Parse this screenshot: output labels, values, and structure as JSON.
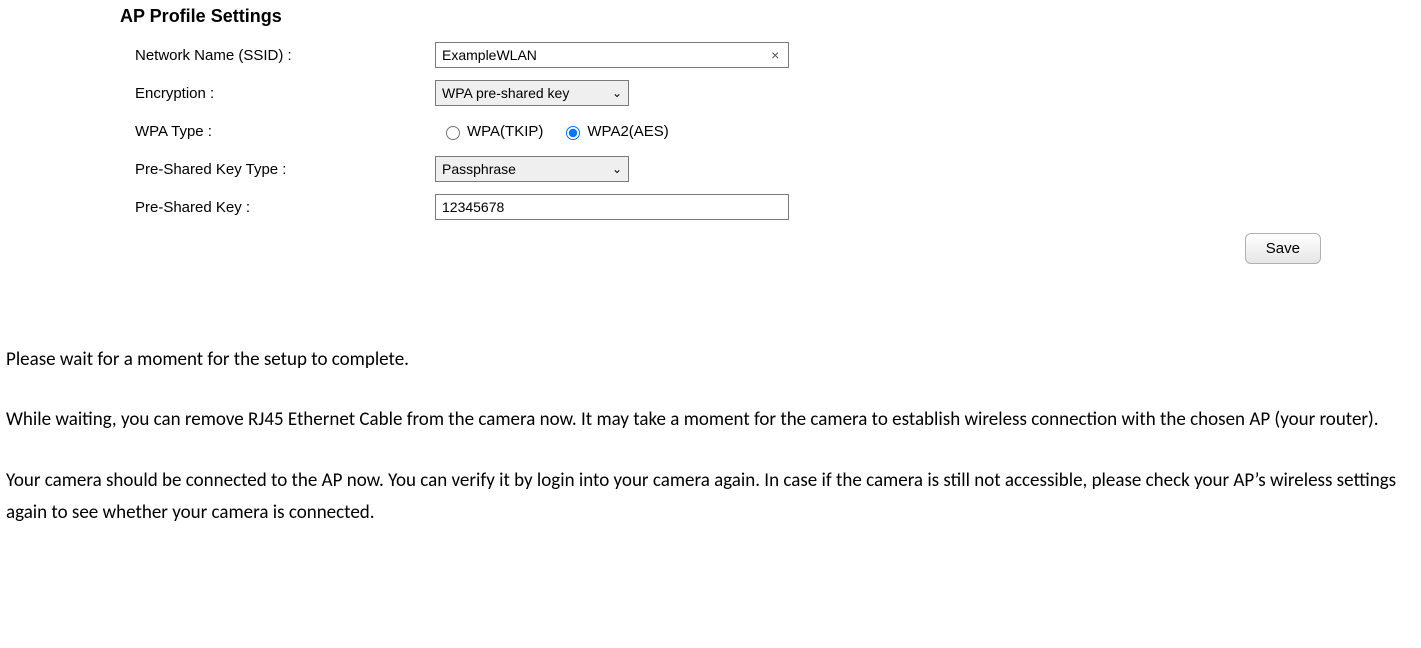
{
  "panel": {
    "title": "AP Profile Settings",
    "fields": {
      "ssid": {
        "label": "Network Name (SSID) :",
        "value": "ExampleWLAN"
      },
      "encryption": {
        "label": "Encryption :",
        "selected": "WPA pre-shared key"
      },
      "wpa_type": {
        "label": "WPA Type :",
        "options": [
          {
            "label": "WPA(TKIP)",
            "checked": false
          },
          {
            "label": "WPA2(AES)",
            "checked": true
          }
        ]
      },
      "psk_type": {
        "label": "Pre-Shared Key Type :",
        "selected": "Passphrase"
      },
      "psk": {
        "label": "Pre-Shared Key :",
        "value": "12345678"
      }
    },
    "save_label": "Save"
  },
  "instructions": {
    "p1": "Please wait for a moment for the setup to complete.",
    "p2": "While waiting, you can remove RJ45 Ethernet Cable from the camera now. It may take a moment for the camera to establish wireless connection with the chosen AP (your router).",
    "p3": "Your camera should be connected to the AP now. You can verify it by login into your camera again. In case if the camera is still not accessible, please check your AP’s wireless settings again to see whether your camera is connected."
  },
  "colors": {
    "text": "#000000",
    "border": "#7a7a7a",
    "select_bg": "#efefef",
    "button_border": "#b0b0b0"
  }
}
